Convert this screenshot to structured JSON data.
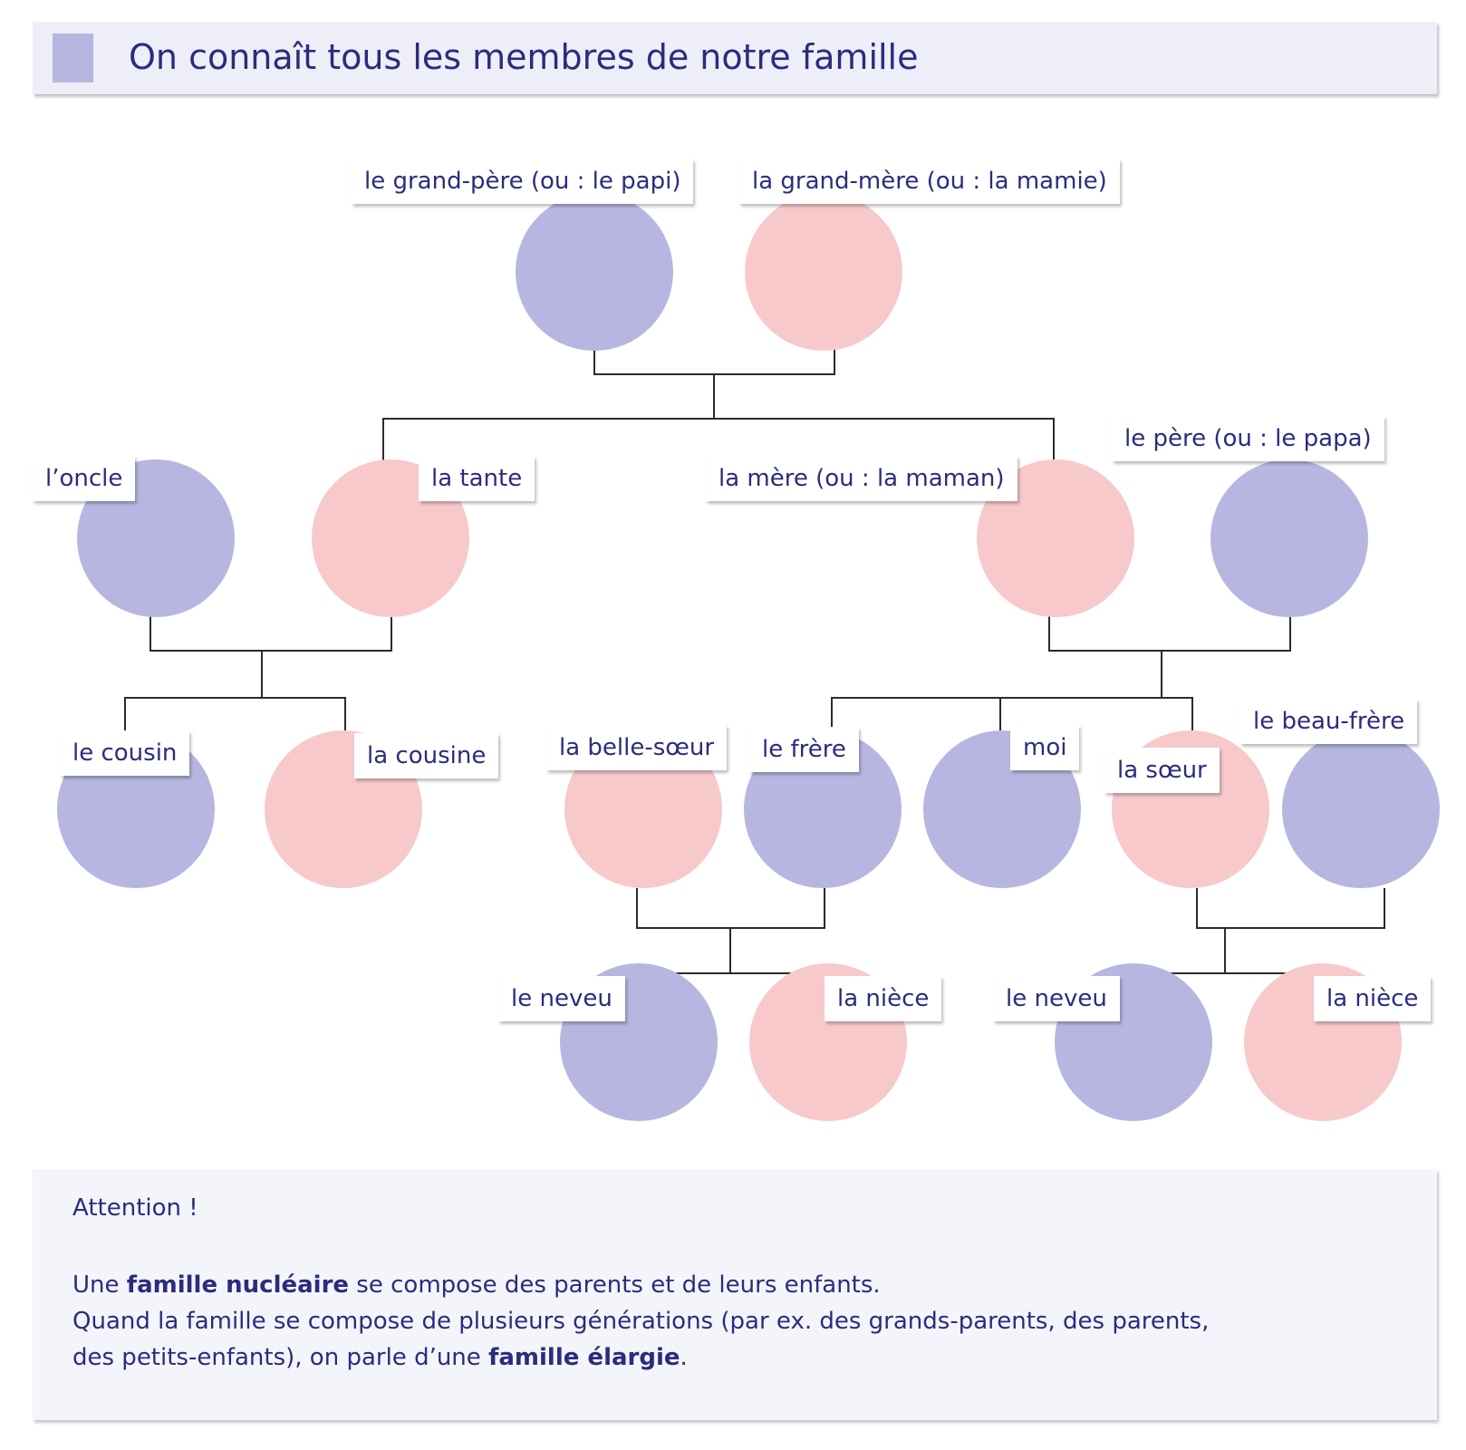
{
  "title": "On connaît tous les membres de notre famille",
  "colors": {
    "male": "#b6b6e0",
    "female": "#f7c9ca",
    "text": "#2b2c7d",
    "line": "#2b2b2b"
  },
  "labels": {
    "grandpere": "le grand-père (ou : le papi)",
    "grandmere": "la grand-mère (ou : la mamie)",
    "oncle": "l’oncle",
    "tante": "la tante",
    "mere": "la mère (ou : la maman)",
    "pere": "le père (ou : le papa)",
    "cousin": "le cousin",
    "cousine": "la cousine",
    "bellesoeur": "la belle-sœur",
    "frere": "le frère",
    "moi": "moi",
    "soeur": "la sœur",
    "beaufrere": "le beau-frère",
    "neveu1": "le neveu",
    "niece1": "la nièce",
    "neveu2": "le neveu",
    "niece2": "la nièce"
  },
  "note": {
    "heading": "Attention !",
    "l1a": "Une ",
    "l1b": "famille nucléaire",
    "l1c": " se compose des parents et de leurs enfants.",
    "l2": "Quand la famille se compose de plusieurs générations (par ex. des grands-parents, des parents,",
    "l3a": "des petits-enfants), on parle d’une ",
    "l3b": "famille élargie",
    "l3c": "."
  }
}
